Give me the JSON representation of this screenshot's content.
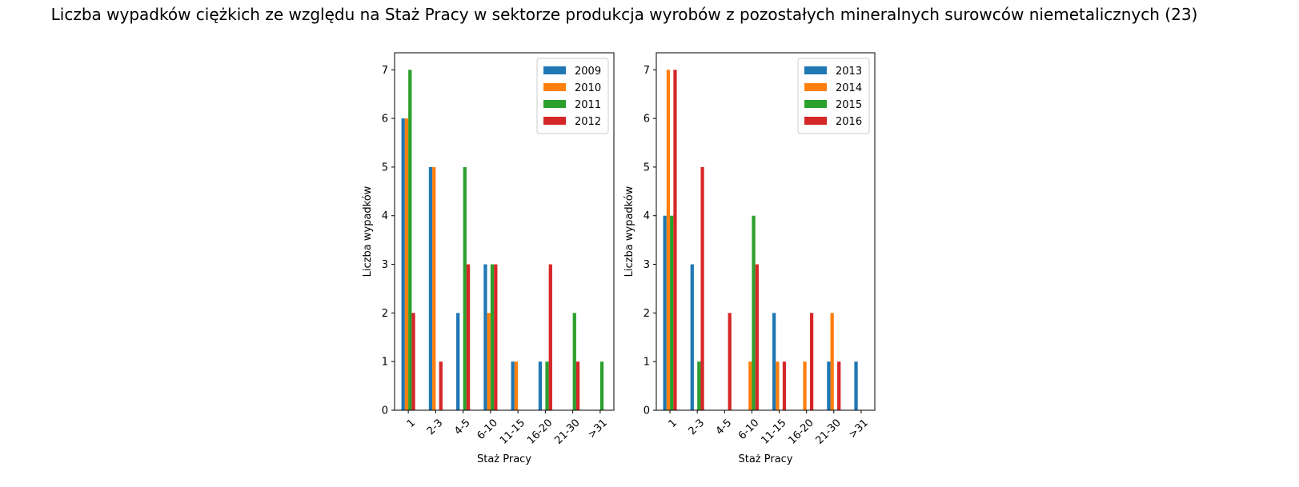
{
  "chart_data": {
    "title": "Liczba wypadków ciężkich ze względu na Staż Pracy w sektorze produkcja wyrobów z pozostałych mineralnych surowców niemetalicznych (23)",
    "panels": [
      {
        "type": "bar",
        "categories": [
          "1",
          "2-3",
          "4-5",
          "6-10",
          "11-15",
          "16-20",
          "21-30",
          ">31"
        ],
        "xlabel": "Staż Pracy",
        "ylabel": "Liczba wypadków",
        "ylim": [
          0,
          7.35
        ],
        "yticks": [
          "0",
          "1",
          "2",
          "3",
          "4",
          "5",
          "6",
          "7"
        ],
        "legend_position": "top-right",
        "series": [
          {
            "name": "2009",
            "color": "#1f77b4",
            "values": [
              6,
              5,
              2,
              3,
              1,
              1,
              0,
              0
            ]
          },
          {
            "name": "2010",
            "color": "#ff7f0e",
            "values": [
              6,
              5,
              0,
              2,
              1,
              0,
              0,
              0
            ]
          },
          {
            "name": "2011",
            "color": "#2ca02c",
            "values": [
              7,
              0,
              5,
              3,
              0,
              1,
              2,
              1
            ]
          },
          {
            "name": "2012",
            "color": "#d62728",
            "values": [
              2,
              1,
              3,
              3,
              0,
              3,
              1,
              0
            ]
          }
        ]
      },
      {
        "type": "bar",
        "categories": [
          "1",
          "2-3",
          "4-5",
          "6-10",
          "11-15",
          "16-20",
          "21-30",
          ">31"
        ],
        "xlabel": "Staż Pracy",
        "ylabel": "Liczba wypadków",
        "ylim": [
          0,
          7.35
        ],
        "yticks": [
          "0",
          "1",
          "2",
          "3",
          "4",
          "5",
          "6",
          "7"
        ],
        "legend_position": "top-right",
        "series": [
          {
            "name": "2013",
            "color": "#1f77b4",
            "values": [
              4,
              3,
              0,
              0,
              2,
              0,
              1,
              1
            ]
          },
          {
            "name": "2014",
            "color": "#ff7f0e",
            "values": [
              7,
              0,
              0,
              1,
              1,
              1,
              2,
              0
            ]
          },
          {
            "name": "2015",
            "color": "#2ca02c",
            "values": [
              4,
              1,
              0,
              4,
              0,
              0,
              0,
              0
            ]
          },
          {
            "name": "2016",
            "color": "#d62728",
            "values": [
              7,
              5,
              2,
              3,
              1,
              2,
              1,
              0
            ]
          }
        ]
      }
    ]
  }
}
